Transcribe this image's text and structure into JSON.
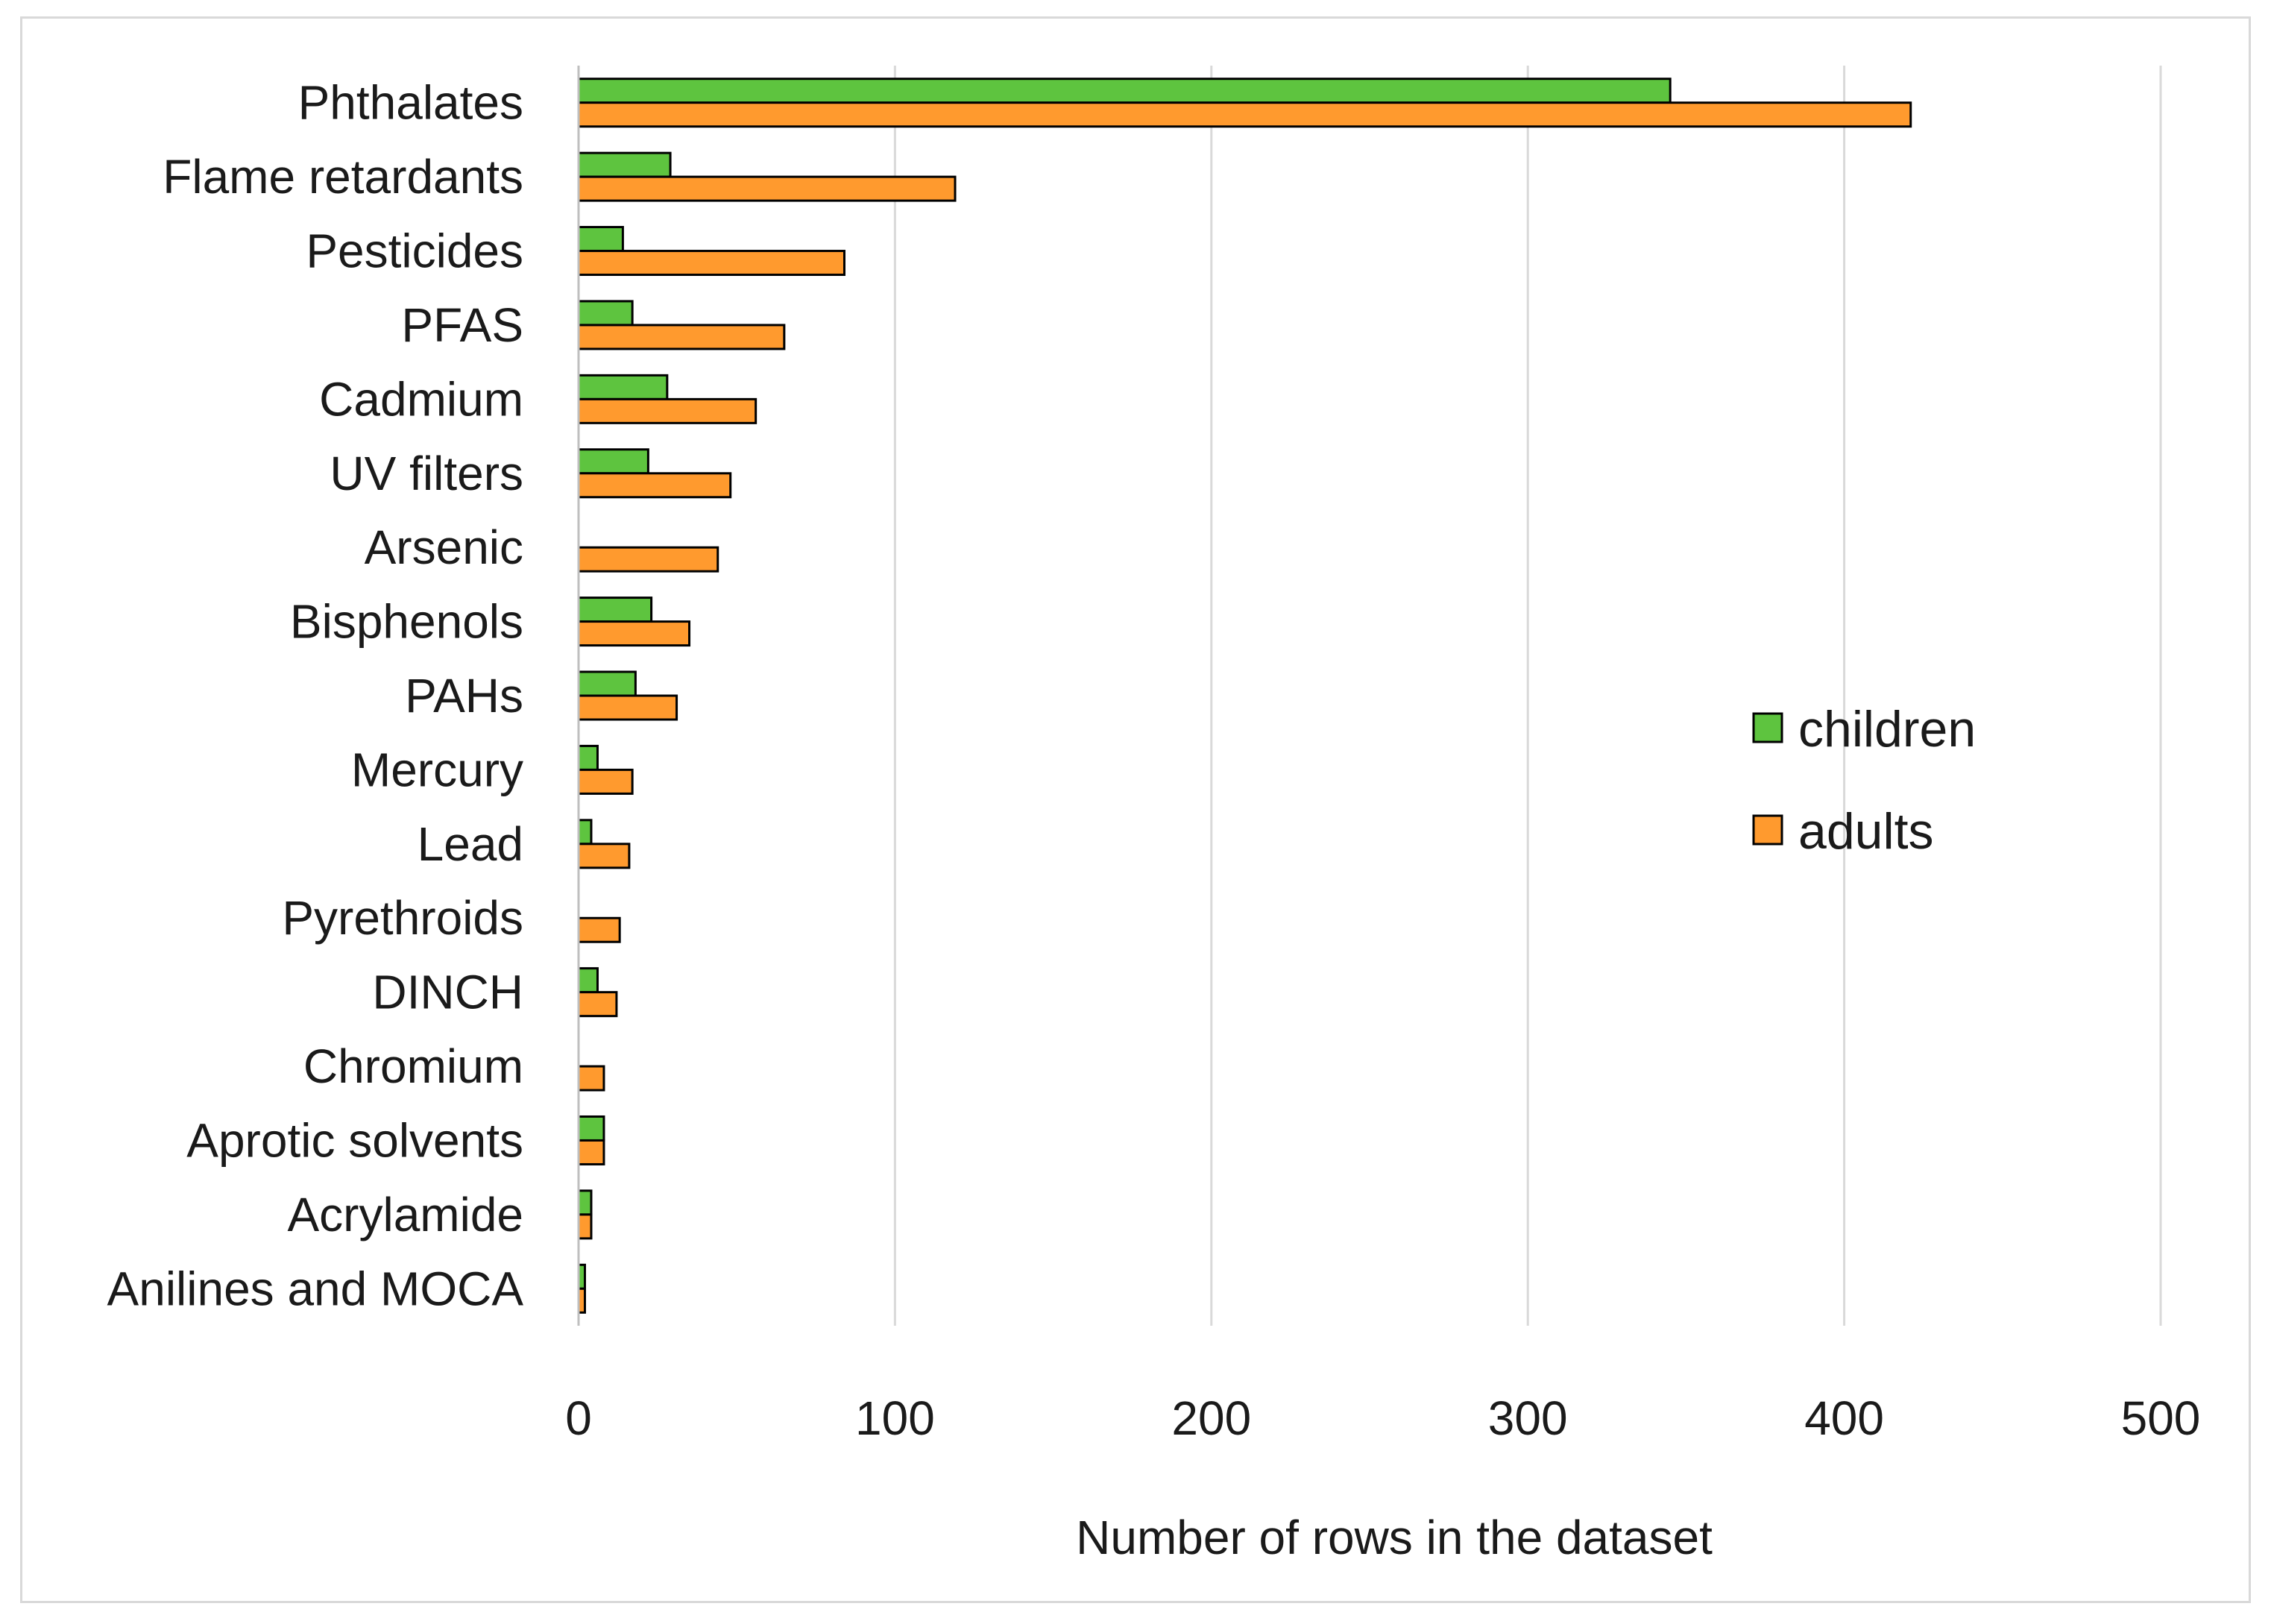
{
  "chart_data": {
    "type": "bar",
    "orientation": "horizontal",
    "title": "",
    "xlabel": "Number of rows in the dataset",
    "ylabel": "",
    "xlim": [
      0,
      500
    ],
    "xticks": [
      0,
      100,
      200,
      300,
      400,
      500
    ],
    "grid": true,
    "legend_position": "right-middle",
    "categories": [
      "Phthalates",
      "Flame retardants",
      "Pesticides",
      "PFAS",
      "Cadmium",
      "UV filters",
      "Arsenic",
      "Bisphenols",
      "PAHs",
      "Mercury",
      "Lead",
      "Pyrethroids",
      "DINCH",
      "Chromium",
      "Aprotic solvents",
      "Acrylamide",
      "Anilines and MOCA"
    ],
    "series": [
      {
        "name": "children",
        "color": "#5ec43f",
        "values": [
          345,
          29,
          14,
          17,
          28,
          22,
          0,
          23,
          18,
          6,
          4,
          0,
          6,
          0,
          8,
          4,
          2
        ]
      },
      {
        "name": "adults",
        "color": "#ff9a2e",
        "values": [
          421,
          119,
          84,
          65,
          56,
          48,
          44,
          35,
          31,
          17,
          16,
          13,
          12,
          8,
          8,
          4,
          2
        ]
      }
    ]
  }
}
